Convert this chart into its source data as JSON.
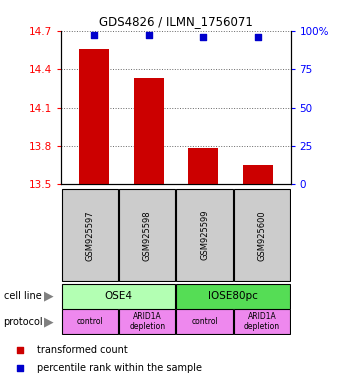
{
  "title": "GDS4826 / ILMN_1756071",
  "samples": [
    "GSM925597",
    "GSM925598",
    "GSM925599",
    "GSM925600"
  ],
  "bar_values": [
    14.56,
    14.33,
    13.78,
    13.65
  ],
  "percentile_values": [
    97,
    97,
    96,
    96
  ],
  "ylim_left": [
    13.5,
    14.7
  ],
  "ylim_right": [
    0,
    100
  ],
  "yticks_left": [
    13.5,
    13.8,
    14.1,
    14.4,
    14.7
  ],
  "ytick_labels_left": [
    "13.5",
    "13.8",
    "14.1",
    "14.4",
    "14.7"
  ],
  "yticks_right": [
    0,
    25,
    50,
    75,
    100
  ],
  "ytick_labels_right": [
    "0",
    "25",
    "50",
    "75",
    "100%"
  ],
  "bar_color": "#cc0000",
  "percentile_color": "#0000cc",
  "bar_width": 0.55,
  "cell_line_colors": [
    "#b3ffb3",
    "#55dd55"
  ],
  "protocol_color": "#ee88ee",
  "legend_red_label": "transformed count",
  "legend_blue_label": "percentile rank within the sample",
  "sample_box_color": "#cccccc",
  "dotted_grid_color": "#666666"
}
